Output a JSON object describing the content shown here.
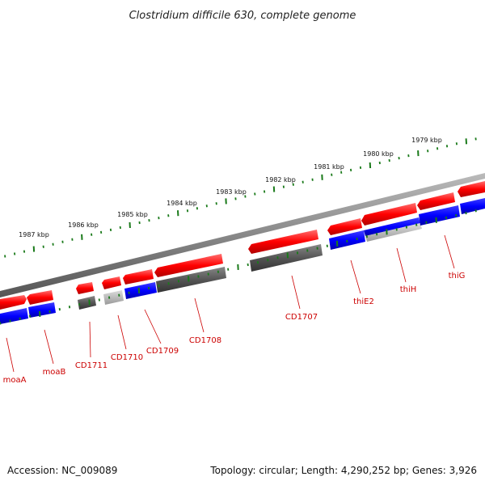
{
  "title": "Clostridium difficile 630, complete genome",
  "footer": {
    "accession": "Accession: NC_009089",
    "summary": "Topology: circular; Length: 4,290,252 bp; Genes: 3,926"
  },
  "colors": {
    "forward_gene": "#ff0000",
    "reverse_gene": "#0000ff",
    "dark_gray_gene": "#555555",
    "light_gray_gene": "#bbbbbb",
    "backbone": "#888888",
    "tick": "#1a7a1a",
    "label": "#cc0000"
  },
  "kbp_labels": [
    "1979 kbp",
    "1980 kbp",
    "1981 kbp",
    "1982 kbp",
    "1983 kbp",
    "1984 kbp",
    "1985 kbp",
    "1986 kbp",
    "1987 kbp"
  ],
  "gene_labels": [
    "moaA",
    "moaB",
    "CD1711",
    "CD1710",
    "CD1709",
    "CD1708",
    "CD1707",
    "thiE2",
    "thiH",
    "thiG"
  ]
}
